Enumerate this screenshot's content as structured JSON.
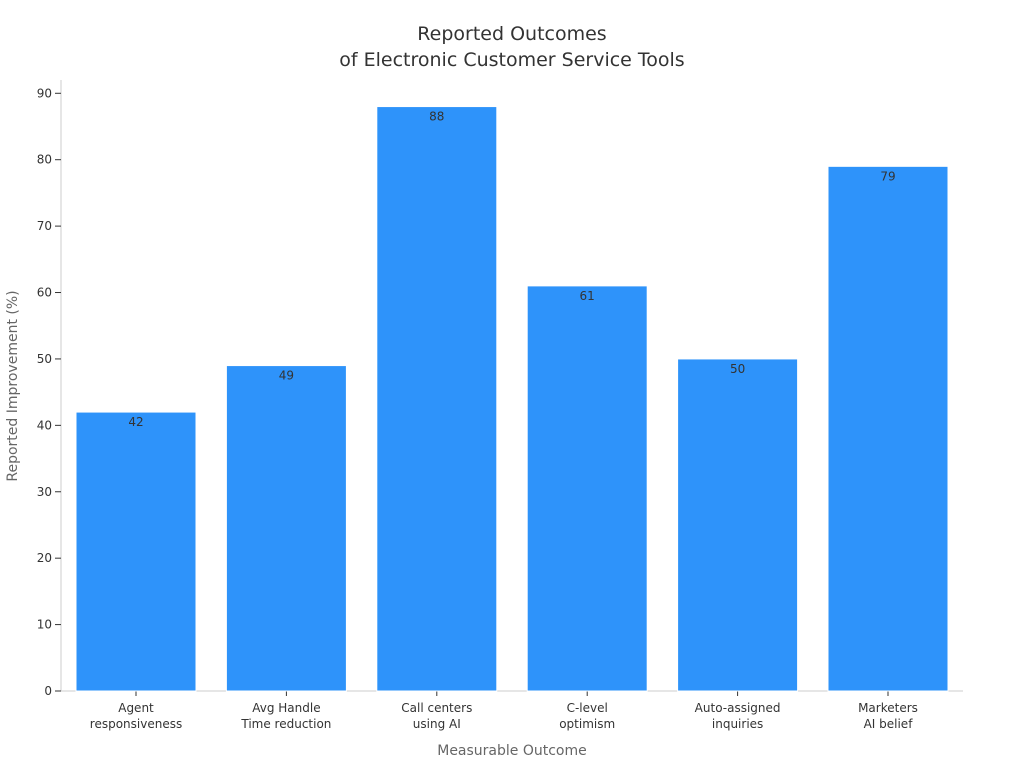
{
  "chart_data": {
    "type": "bar",
    "title": [
      "Reported Outcomes",
      "of Electronic Customer Service Tools"
    ],
    "xlabel": "Measurable Outcome",
    "ylabel": "Reported Improvement (%)",
    "categories": [
      [
        "Agent",
        "responsiveness"
      ],
      [
        "Avg Handle",
        "Time reduction"
      ],
      [
        "Call centers",
        "using AI"
      ],
      [
        "C-level",
        "optimism"
      ],
      [
        "Auto-assigned",
        "inquiries"
      ],
      [
        "Marketers",
        "AI belief"
      ]
    ],
    "values": [
      42,
      49,
      88,
      61,
      50,
      79
    ],
    "ylim": [
      0,
      92
    ],
    "yticks": [
      0,
      10,
      20,
      30,
      40,
      50,
      60,
      70,
      80,
      90
    ],
    "grid": false,
    "data_labels": true,
    "colors": {
      "bar": "#2e93fa",
      "axis": "#cccccc",
      "text": "#333333"
    }
  }
}
